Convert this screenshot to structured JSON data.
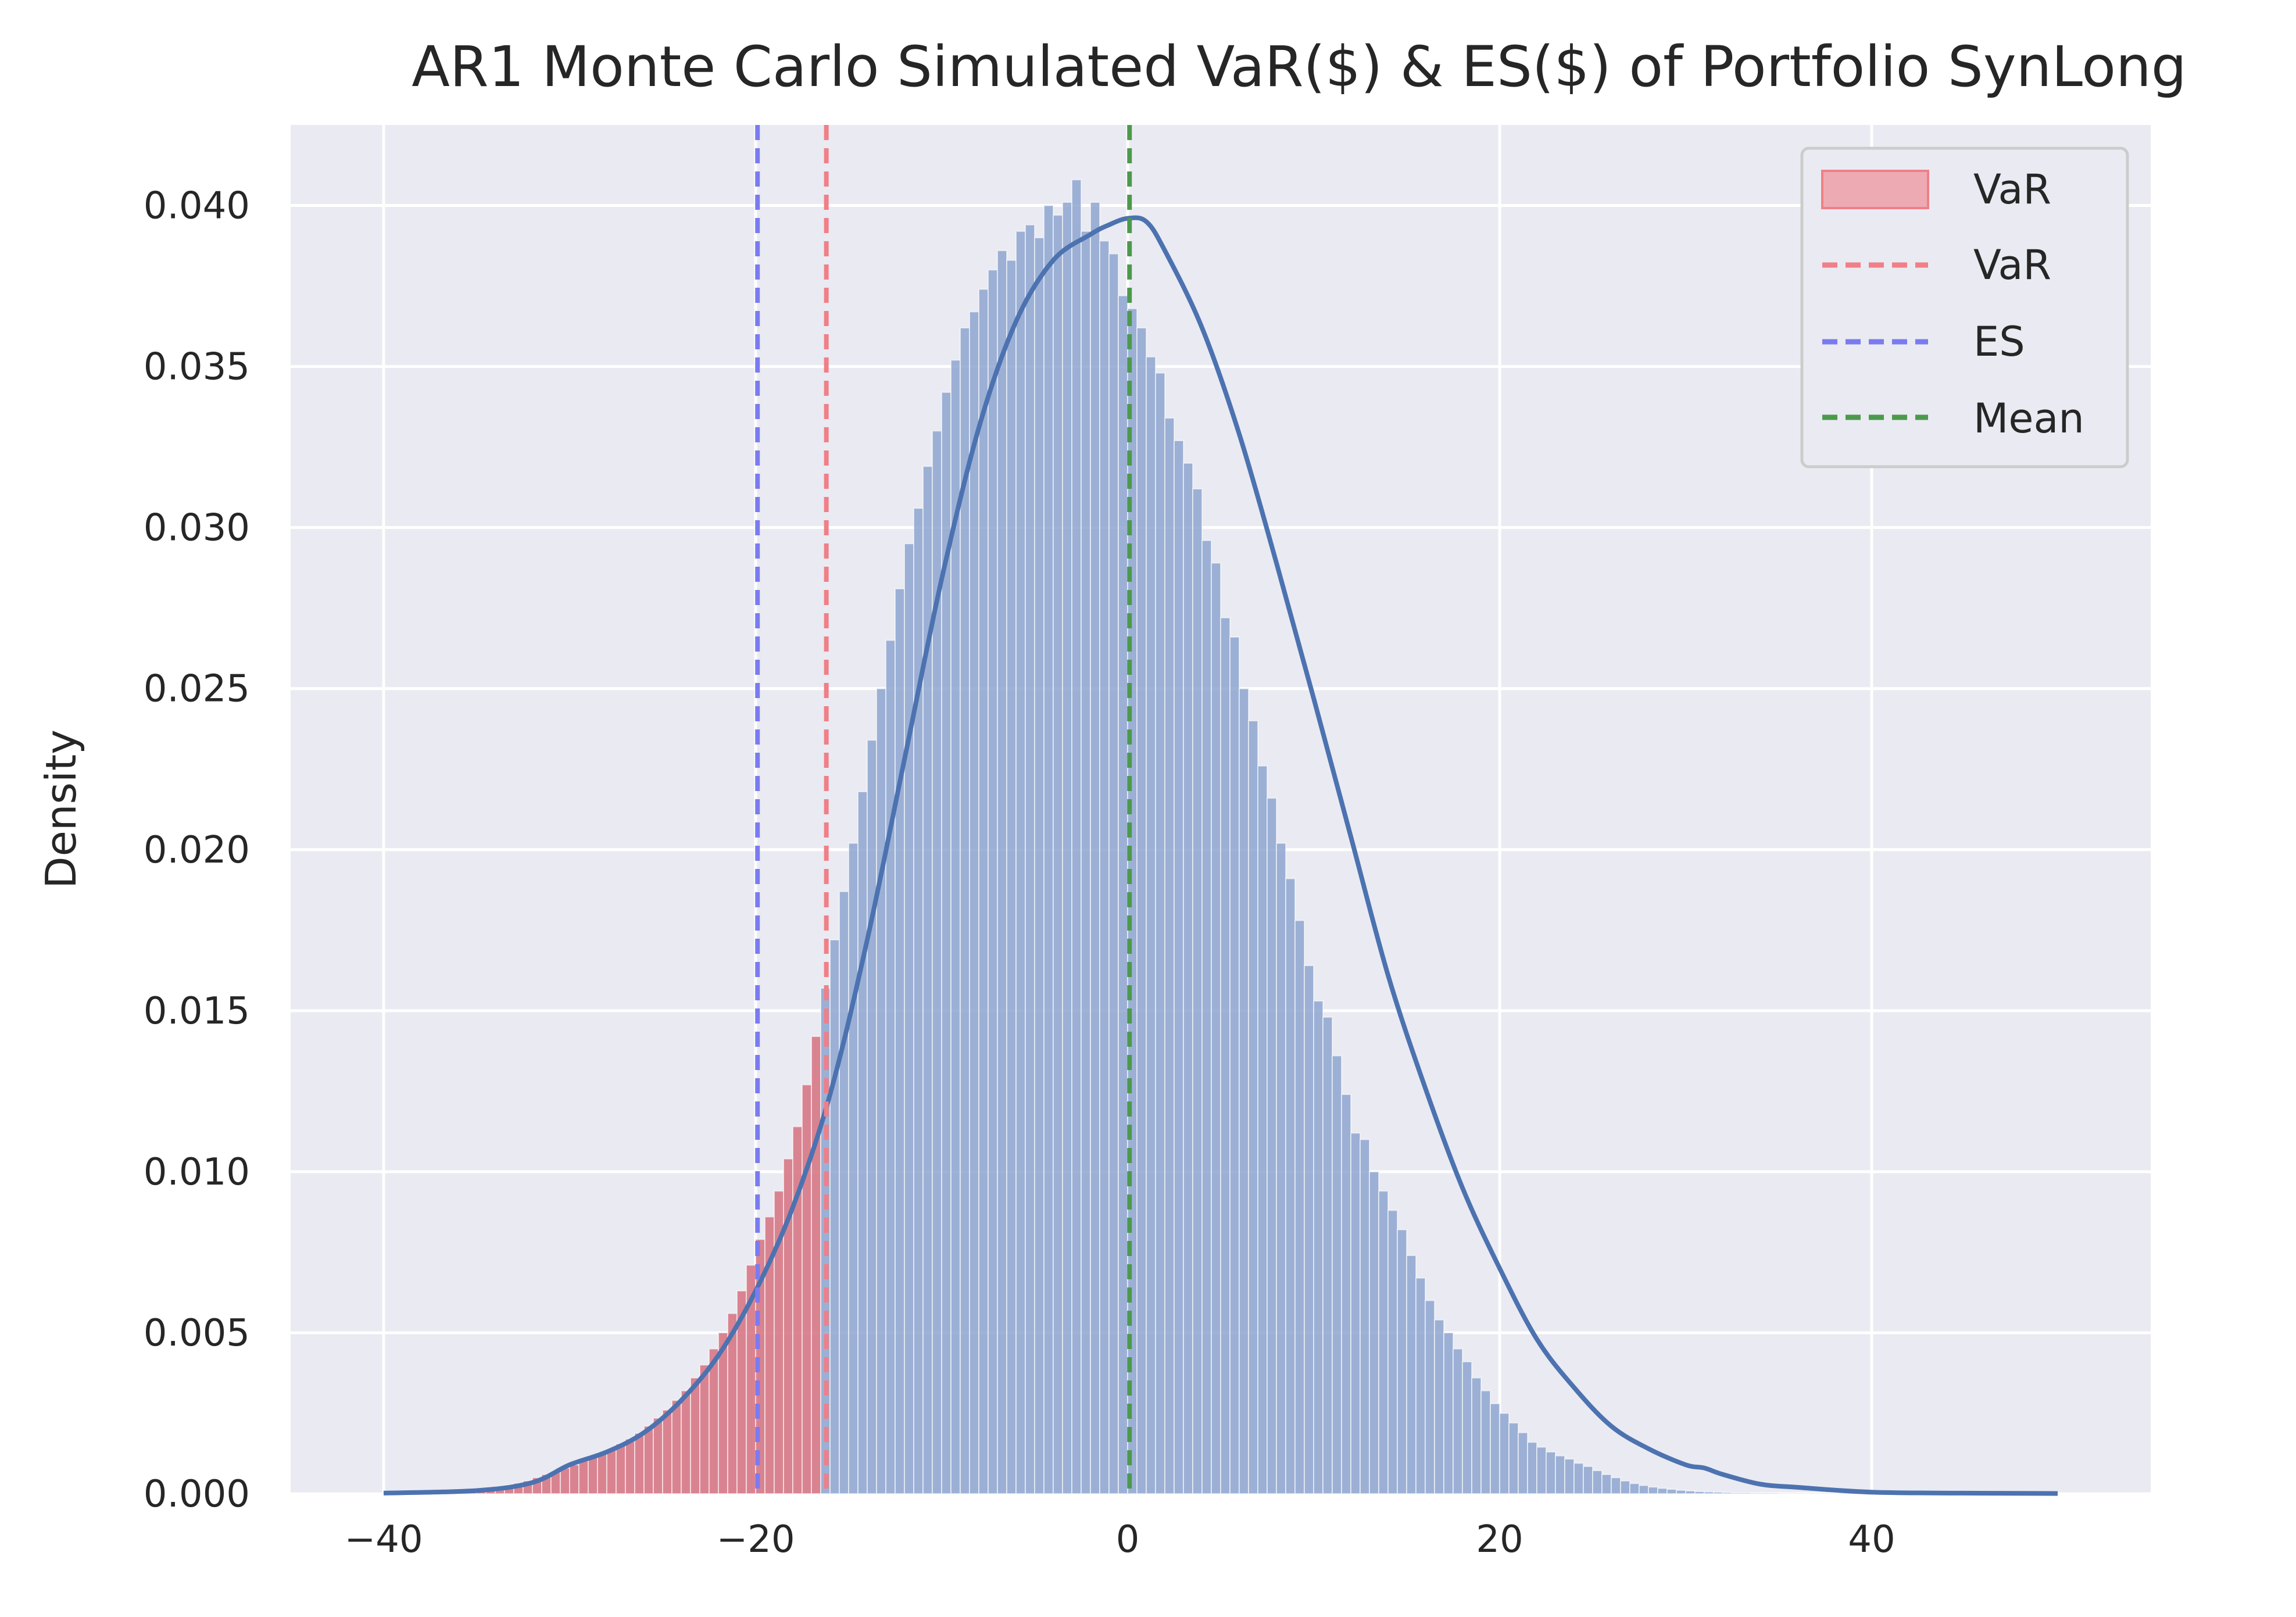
{
  "chart_data": {
    "type": "bar",
    "title": "AR1 Monte Carlo Simulated VaR($) & ES($) of Portfolio SynLong",
    "xlabel": "",
    "ylabel": "Density",
    "xlim": [
      -45,
      55
    ],
    "ylim": [
      0,
      0.0425
    ],
    "x_ticks": [
      -40,
      -20,
      0,
      20,
      40
    ],
    "x_tick_labels": [
      "−40",
      "−20",
      "0",
      "20",
      "40"
    ],
    "y_ticks": [
      0,
      0.005,
      0.01,
      0.015,
      0.02,
      0.025,
      0.03,
      0.035,
      0.04
    ],
    "y_tick_labels": [
      "0.000",
      "0.005",
      "0.010",
      "0.015",
      "0.020",
      "0.025",
      "0.030",
      "0.035",
      "0.040"
    ],
    "grid": true,
    "legend_position": "top-right",
    "legend": [
      {
        "label": "VaR",
        "kind": "patch",
        "color": "#f07f87"
      },
      {
        "label": "VaR",
        "kind": "dashed-line",
        "color": "#f07f87"
      },
      {
        "label": "ES",
        "kind": "dashed-line",
        "color": "#7b7bf0"
      },
      {
        "label": "Mean",
        "kind": "dashed-line",
        "color": "#4c994c"
      }
    ],
    "histogram": {
      "bin_width": 0.5,
      "x_start": -40,
      "tail_threshold": -16.2,
      "body_color": "#8ea6d0",
      "tail_color": "#d77886",
      "density": [
        3e-05,
        3e-05,
        4e-05,
        4e-05,
        5e-05,
        6e-05,
        7e-05,
        8e-05,
        0.0001,
        0.00012,
        0.00015,
        0.00018,
        0.00022,
        0.00027,
        0.00033,
        0.0004,
        0.0005,
        0.0006,
        0.0007,
        0.0008,
        0.0009,
        0.00102,
        0.00115,
        0.00128,
        0.0014,
        0.00155,
        0.0017,
        0.00188,
        0.0021,
        0.00235,
        0.0026,
        0.0029,
        0.0032,
        0.0036,
        0.004,
        0.0045,
        0.005,
        0.0056,
        0.0063,
        0.0071,
        0.0079,
        0.0086,
        0.0094,
        0.0104,
        0.0114,
        0.0127,
        0.0142,
        0.0157,
        0.0172,
        0.0187,
        0.0202,
        0.0218,
        0.0234,
        0.025,
        0.0265,
        0.0281,
        0.0295,
        0.0306,
        0.0319,
        0.033,
        0.0342,
        0.0352,
        0.0362,
        0.0367,
        0.0374,
        0.038,
        0.0386,
        0.0383,
        0.0392,
        0.0394,
        0.039,
        0.04,
        0.0397,
        0.0401,
        0.0408,
        0.0392,
        0.0401,
        0.0389,
        0.0385,
        0.0372,
        0.0368,
        0.0362,
        0.0353,
        0.0348,
        0.0334,
        0.0327,
        0.032,
        0.0312,
        0.0296,
        0.0289,
        0.0272,
        0.0266,
        0.025,
        0.024,
        0.0226,
        0.0216,
        0.0202,
        0.0191,
        0.0178,
        0.0164,
        0.0153,
        0.0148,
        0.0136,
        0.0124,
        0.0112,
        0.011,
        0.01,
        0.0094,
        0.0088,
        0.0082,
        0.0074,
        0.0067,
        0.006,
        0.0054,
        0.005,
        0.0045,
        0.0041,
        0.0036,
        0.0032,
        0.0028,
        0.0025,
        0.0022,
        0.0019,
        0.0016,
        0.00145,
        0.0013,
        0.00118,
        0.00108,
        0.00095,
        0.00085,
        0.00072,
        0.0006,
        0.0005,
        0.0004,
        0.00032,
        0.00026,
        0.00021,
        0.00017,
        0.00014,
        0.00011,
        9e-05,
        7e-05,
        6e-05,
        5e-05,
        4e-05,
        3e-05,
        3e-05,
        2e-05,
        2e-05,
        2e-05,
        1e-05,
        1e-05,
        1e-05,
        1e-05,
        1e-05,
        1e-05,
        1e-05,
        1e-05,
        1e-05,
        1e-05,
        1e-05,
        1e-05,
        1e-05
      ]
    },
    "kde_curve": {
      "color": "#4c72b0",
      "x": [
        -40,
        -35,
        -32,
        -30,
        -28,
        -26,
        -24,
        -22,
        -20,
        -18,
        -16,
        -14,
        -12,
        -10,
        -8,
        -6,
        -4,
        -2,
        -1,
        0,
        1,
        2,
        4,
        6,
        8,
        10,
        12,
        14,
        16,
        18,
        20,
        22,
        24,
        26,
        28,
        30,
        31,
        32,
        34,
        36,
        40,
        45,
        50
      ],
      "y": [
        2e-05,
        0.0001,
        0.00035,
        0.0009,
        0.0013,
        0.0019,
        0.0029,
        0.0043,
        0.0063,
        0.0089,
        0.0124,
        0.0172,
        0.0228,
        0.0284,
        0.0331,
        0.0364,
        0.0383,
        0.0391,
        0.0394,
        0.0396,
        0.0395,
        0.0386,
        0.0362,
        0.0329,
        0.0289,
        0.0247,
        0.0204,
        0.0161,
        0.0126,
        0.0095,
        0.007,
        0.0048,
        0.0033,
        0.0021,
        0.0014,
        0.0009,
        0.0008,
        0.0006,
        0.0003,
        0.0002,
        5e-05,
        2e-05,
        1e-05
      ]
    },
    "reference_lines": [
      {
        "label": "VaR",
        "x": -16.2,
        "color": "#f07f87"
      },
      {
        "label": "ES",
        "x": -19.9,
        "color": "#7b7bf0"
      },
      {
        "label": "Mean",
        "x": 0.1,
        "color": "#4c994c"
      }
    ]
  }
}
